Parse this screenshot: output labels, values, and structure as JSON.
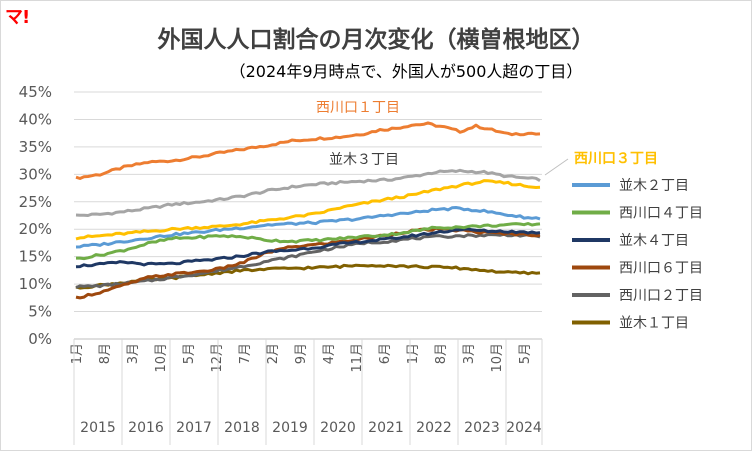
{
  "logo": "マ!",
  "title": "外国人人口割合の月次変化（横曽根地区）",
  "subtitle": "（2024年9月時点で、外国人が500人超の丁目）",
  "chart_data": {
    "type": "line",
    "title": "外国人人口割合の月次変化（横曽根地区）",
    "subtitle": "（2024年9月時点で、外国人が500人超の丁目）",
    "xlabel": "",
    "ylabel": "",
    "ylim": [
      0,
      0.45
    ],
    "yticks": [
      "0%",
      "5%",
      "10%",
      "15%",
      "20%",
      "25%",
      "30%",
      "35%",
      "40%",
      "45%"
    ],
    "grid": true,
    "legend_position": "right",
    "x_start": "2015-01",
    "x_end": "2024-09",
    "month_ticks": [
      "1月",
      "8月",
      "3月",
      "10月",
      "5月",
      "12月",
      "7月",
      "2月",
      "9月",
      "4月",
      "11月",
      "6月",
      "1月",
      "8月",
      "3月",
      "10月",
      "5月"
    ],
    "years": [
      "2015",
      "2016",
      "2017",
      "2018",
      "2019",
      "2020",
      "2021",
      "2022",
      "2023",
      "2024"
    ],
    "series": [
      {
        "name": "西川口１丁目",
        "color": "#ed7d31",
        "width": 3,
        "label_on_chart": true,
        "label_bold": false,
        "points": [
          [
            0,
            0.293
          ],
          [
            6,
            0.3
          ],
          [
            12,
            0.313
          ],
          [
            18,
            0.322
          ],
          [
            24,
            0.325
          ],
          [
            30,
            0.331
          ],
          [
            36,
            0.339
          ],
          [
            42,
            0.346
          ],
          [
            48,
            0.353
          ],
          [
            54,
            0.361
          ],
          [
            60,
            0.365
          ],
          [
            66,
            0.368
          ],
          [
            72,
            0.374
          ],
          [
            76,
            0.381
          ],
          [
            80,
            0.384
          ],
          [
            84,
            0.39
          ],
          [
            88,
            0.392
          ],
          [
            92,
            0.386
          ],
          [
            96,
            0.378
          ],
          [
            100,
            0.388
          ],
          [
            104,
            0.381
          ],
          [
            108,
            0.373
          ],
          [
            114,
            0.375
          ],
          [
            120,
            0.366
          ],
          [
            126,
            0.359
          ],
          [
            132,
            0.367
          ],
          [
            138,
            0.363
          ],
          [
            144,
            0.371
          ],
          [
            148,
            0.369
          ],
          [
            152,
            0.374
          ],
          [
            156,
            0.378
          ],
          [
            160,
            0.382
          ],
          [
            164,
            0.385
          ],
          [
            168,
            0.386
          ],
          [
            176,
            0.387
          ]
        ]
      },
      {
        "name": "並木３丁目",
        "color": "#a5a5a5",
        "width": 3,
        "label_on_chart": true,
        "label_bold": false,
        "points": [
          [
            0,
            0.225
          ],
          [
            6,
            0.227
          ],
          [
            12,
            0.232
          ],
          [
            18,
            0.238
          ],
          [
            24,
            0.245
          ],
          [
            30,
            0.249
          ],
          [
            36,
            0.254
          ],
          [
            42,
            0.261
          ],
          [
            48,
            0.27
          ],
          [
            54,
            0.277
          ],
          [
            60,
            0.282
          ],
          [
            66,
            0.285
          ],
          [
            72,
            0.288
          ],
          [
            78,
            0.29
          ],
          [
            84,
            0.296
          ],
          [
            90,
            0.304
          ],
          [
            96,
            0.306
          ],
          [
            102,
            0.304
          ],
          [
            108,
            0.296
          ],
          [
            114,
            0.292
          ],
          [
            120,
            0.287
          ],
          [
            126,
            0.289
          ],
          [
            132,
            0.292
          ],
          [
            138,
            0.298
          ],
          [
            144,
            0.302
          ],
          [
            150,
            0.305
          ],
          [
            156,
            0.309
          ],
          [
            162,
            0.315
          ],
          [
            168,
            0.319
          ],
          [
            176,
            0.321
          ]
        ]
      },
      {
        "name": "西川口３丁目",
        "color": "#ffc000",
        "width": 3,
        "label_on_chart": true,
        "label_bold": true,
        "points": [
          [
            0,
            0.184
          ],
          [
            6,
            0.188
          ],
          [
            12,
            0.192
          ],
          [
            18,
            0.196
          ],
          [
            24,
            0.2
          ],
          [
            30,
            0.203
          ],
          [
            36,
            0.205
          ],
          [
            42,
            0.21
          ],
          [
            48,
            0.216
          ],
          [
            54,
            0.222
          ],
          [
            60,
            0.228
          ],
          [
            66,
            0.239
          ],
          [
            72,
            0.247
          ],
          [
            78,
            0.255
          ],
          [
            84,
            0.262
          ],
          [
            90,
            0.272
          ],
          [
            96,
            0.28
          ],
          [
            102,
            0.287
          ],
          [
            108,
            0.284
          ],
          [
            114,
            0.277
          ],
          [
            120,
            0.28
          ],
          [
            126,
            0.275
          ],
          [
            132,
            0.27
          ],
          [
            138,
            0.27
          ],
          [
            144,
            0.274
          ],
          [
            150,
            0.275
          ],
          [
            156,
            0.278
          ],
          [
            162,
            0.282
          ],
          [
            168,
            0.287
          ],
          [
            176,
            0.295
          ]
        ]
      },
      {
        "name": "並木２丁目",
        "color": "#5b9bd5",
        "width": 3,
        "label_on_chart": false,
        "points": [
          [
            0,
            0.168
          ],
          [
            6,
            0.172
          ],
          [
            12,
            0.178
          ],
          [
            18,
            0.184
          ],
          [
            24,
            0.19
          ],
          [
            30,
            0.194
          ],
          [
            36,
            0.199
          ],
          [
            42,
            0.203
          ],
          [
            48,
            0.208
          ],
          [
            54,
            0.21
          ],
          [
            60,
            0.212
          ],
          [
            66,
            0.216
          ],
          [
            72,
            0.22
          ],
          [
            78,
            0.226
          ],
          [
            84,
            0.23
          ],
          [
            90,
            0.236
          ],
          [
            96,
            0.238
          ],
          [
            102,
            0.233
          ],
          [
            108,
            0.226
          ],
          [
            114,
            0.22
          ],
          [
            120,
            0.221
          ],
          [
            126,
            0.222
          ],
          [
            132,
            0.223
          ],
          [
            138,
            0.226
          ],
          [
            144,
            0.228
          ],
          [
            150,
            0.233
          ],
          [
            156,
            0.24
          ],
          [
            162,
            0.244
          ],
          [
            168,
            0.25
          ],
          [
            176,
            0.257
          ]
        ]
      },
      {
        "name": "西川口４丁目",
        "color": "#70ad47",
        "width": 3,
        "label_on_chart": false,
        "points": [
          [
            0,
            0.146
          ],
          [
            6,
            0.153
          ],
          [
            12,
            0.162
          ],
          [
            18,
            0.174
          ],
          [
            24,
            0.183
          ],
          [
            30,
            0.185
          ],
          [
            36,
            0.188
          ],
          [
            42,
            0.186
          ],
          [
            48,
            0.18
          ],
          [
            54,
            0.178
          ],
          [
            60,
            0.18
          ],
          [
            66,
            0.183
          ],
          [
            72,
            0.187
          ],
          [
            78,
            0.19
          ],
          [
            84,
            0.196
          ],
          [
            90,
            0.203
          ],
          [
            96,
            0.204
          ],
          [
            102,
            0.206
          ],
          [
            108,
            0.208
          ],
          [
            114,
            0.209
          ],
          [
            120,
            0.21
          ],
          [
            126,
            0.206
          ],
          [
            132,
            0.204
          ],
          [
            138,
            0.207
          ],
          [
            144,
            0.212
          ],
          [
            150,
            0.215
          ],
          [
            156,
            0.218
          ],
          [
            162,
            0.222
          ],
          [
            168,
            0.226
          ],
          [
            176,
            0.235
          ]
        ]
      },
      {
        "name": "並木４丁目",
        "color": "#1f3864",
        "width": 3,
        "label_on_chart": false,
        "points": [
          [
            0,
            0.133
          ],
          [
            6,
            0.136
          ],
          [
            12,
            0.14
          ],
          [
            18,
            0.136
          ],
          [
            24,
            0.137
          ],
          [
            30,
            0.142
          ],
          [
            36,
            0.146
          ],
          [
            42,
            0.152
          ],
          [
            48,
            0.159
          ],
          [
            54,
            0.162
          ],
          [
            60,
            0.167
          ],
          [
            66,
            0.173
          ],
          [
            72,
            0.178
          ],
          [
            78,
            0.182
          ],
          [
            84,
            0.188
          ],
          [
            90,
            0.194
          ],
          [
            96,
            0.2
          ],
          [
            102,
            0.197
          ],
          [
            108,
            0.196
          ],
          [
            114,
            0.194
          ],
          [
            120,
            0.196
          ],
          [
            126,
            0.198
          ],
          [
            132,
            0.201
          ],
          [
            138,
            0.203
          ],
          [
            144,
            0.206
          ],
          [
            150,
            0.21
          ],
          [
            156,
            0.217
          ],
          [
            162,
            0.224
          ],
          [
            168,
            0.23
          ],
          [
            176,
            0.24
          ]
        ]
      },
      {
        "name": "西川口６丁目",
        "color": "#9e480e",
        "width": 3,
        "label_on_chart": false,
        "points": [
          [
            0,
            0.075
          ],
          [
            6,
            0.085
          ],
          [
            12,
            0.098
          ],
          [
            18,
            0.112
          ],
          [
            24,
            0.118
          ],
          [
            30,
            0.122
          ],
          [
            36,
            0.128
          ],
          [
            42,
            0.14
          ],
          [
            48,
            0.158
          ],
          [
            54,
            0.168
          ],
          [
            60,
            0.172
          ],
          [
            66,
            0.177
          ],
          [
            72,
            0.183
          ],
          [
            78,
            0.19
          ],
          [
            84,
            0.197
          ],
          [
            90,
            0.2
          ],
          [
            96,
            0.198
          ],
          [
            102,
            0.194
          ],
          [
            108,
            0.192
          ],
          [
            114,
            0.19
          ],
          [
            120,
            0.188
          ],
          [
            126,
            0.19
          ],
          [
            132,
            0.193
          ],
          [
            138,
            0.198
          ],
          [
            144,
            0.203
          ],
          [
            150,
            0.205
          ],
          [
            156,
            0.208
          ],
          [
            162,
            0.212
          ],
          [
            168,
            0.217
          ],
          [
            176,
            0.222
          ]
        ]
      },
      {
        "name": "西川口２丁目",
        "color": "#636363",
        "width": 3,
        "label_on_chart": false,
        "points": [
          [
            0,
            0.095
          ],
          [
            6,
            0.097
          ],
          [
            12,
            0.101
          ],
          [
            18,
            0.106
          ],
          [
            24,
            0.112
          ],
          [
            30,
            0.118
          ],
          [
            36,
            0.125
          ],
          [
            42,
            0.133
          ],
          [
            48,
            0.142
          ],
          [
            54,
            0.15
          ],
          [
            60,
            0.16
          ],
          [
            66,
            0.168
          ],
          [
            72,
            0.175
          ],
          [
            78,
            0.178
          ],
          [
            84,
            0.183
          ],
          [
            90,
            0.186
          ],
          [
            96,
            0.188
          ],
          [
            102,
            0.189
          ],
          [
            108,
            0.19
          ],
          [
            114,
            0.188
          ],
          [
            120,
            0.184
          ],
          [
            126,
            0.186
          ],
          [
            132,
            0.188
          ],
          [
            138,
            0.192
          ],
          [
            144,
            0.196
          ],
          [
            150,
            0.2
          ],
          [
            156,
            0.205
          ],
          [
            162,
            0.21
          ],
          [
            168,
            0.216
          ],
          [
            176,
            0.225
          ]
        ]
      },
      {
        "name": "並木１丁目",
        "color": "#806000",
        "width": 3,
        "label_on_chart": false,
        "points": [
          [
            0,
            0.093
          ],
          [
            6,
            0.098
          ],
          [
            12,
            0.103
          ],
          [
            18,
            0.108
          ],
          [
            24,
            0.111
          ],
          [
            30,
            0.116
          ],
          [
            36,
            0.121
          ],
          [
            42,
            0.125
          ],
          [
            48,
            0.127
          ],
          [
            54,
            0.129
          ],
          [
            60,
            0.13
          ],
          [
            66,
            0.132
          ],
          [
            72,
            0.135
          ],
          [
            78,
            0.134
          ],
          [
            84,
            0.132
          ],
          [
            90,
            0.131
          ],
          [
            96,
            0.129
          ],
          [
            102,
            0.125
          ],
          [
            108,
            0.121
          ],
          [
            114,
            0.12
          ],
          [
            120,
            0.119
          ],
          [
            126,
            0.118
          ],
          [
            132,
            0.12
          ],
          [
            138,
            0.124
          ],
          [
            144,
            0.128
          ],
          [
            150,
            0.133
          ],
          [
            156,
            0.135
          ],
          [
            162,
            0.137
          ],
          [
            168,
            0.14
          ],
          [
            176,
            0.145
          ]
        ]
      }
    ]
  }
}
